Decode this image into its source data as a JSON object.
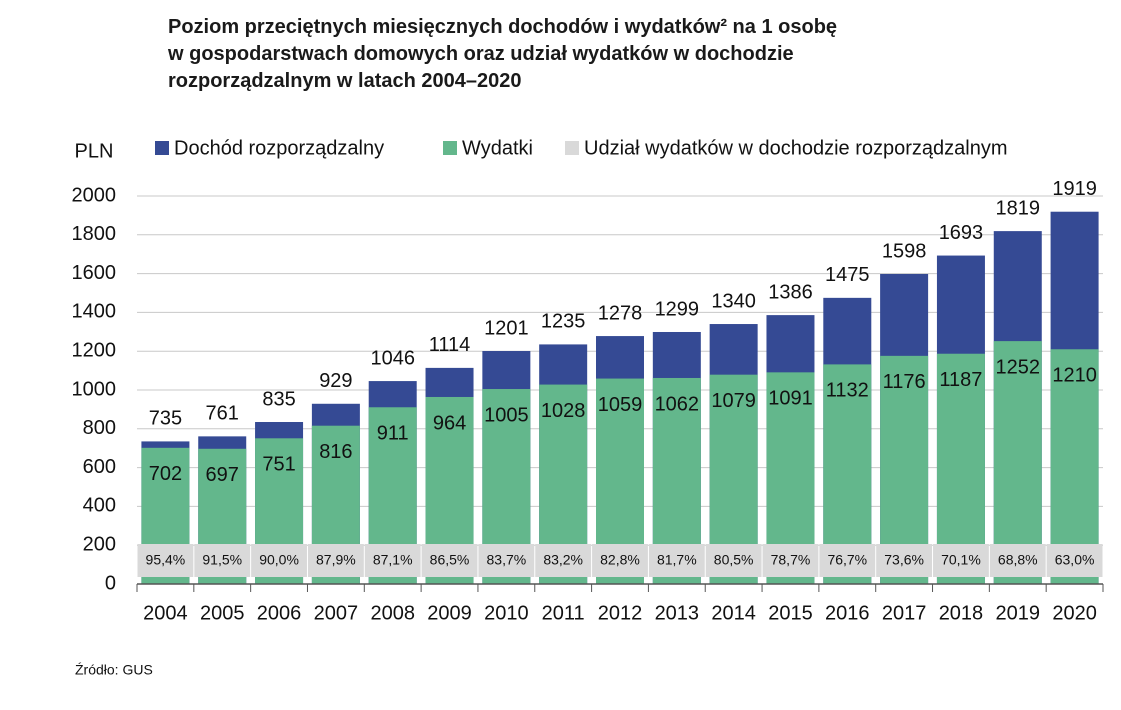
{
  "chart_data": {
    "type": "bar",
    "title": "Poziom przeciętnych miesięcznych dochodów i wydatków² na 1 osobę\nw gospodarstwach domowych oraz udział wydatków w dochodzie\nrozporządzalnym w latach 2004–2020",
    "y_label": "PLN",
    "source": "Źródło: GUS",
    "categories": [
      "2004",
      "2005",
      "2006",
      "2007",
      "2008",
      "2009",
      "2010",
      "2011",
      "2012",
      "2013",
      "2014",
      "2015",
      "2016",
      "2017",
      "2018",
      "2019",
      "2020"
    ],
    "series": [
      {
        "name": "Dochód rozporządzalny",
        "color": "#354a94",
        "values": [
          735,
          761,
          835,
          929,
          1046,
          1114,
          1201,
          1235,
          1278,
          1299,
          1340,
          1386,
          1475,
          1598,
          1693,
          1819,
          1919
        ]
      },
      {
        "name": "Wydatki",
        "color": "#63b78c",
        "values": [
          702,
          697,
          751,
          816,
          911,
          964,
          1005,
          1028,
          1059,
          1062,
          1079,
          1091,
          1132,
          1176,
          1187,
          1252,
          1210
        ]
      },
      {
        "name": "Udział wydatków w dochodzie rozporządzalnym",
        "color": "#d9d9d9",
        "values": [
          95.4,
          91.5,
          90.0,
          87.9,
          87.1,
          86.5,
          83.7,
          83.2,
          82.8,
          81.7,
          80.5,
          78.7,
          76.7,
          73.6,
          70.1,
          68.8,
          63.0
        ],
        "value_labels": [
          "95,4%",
          "91,5%",
          "90,0%",
          "87,9%",
          "87,1%",
          "86,5%",
          "83,7%",
          "83,2%",
          "82,8%",
          "81,7%",
          "80,5%",
          "78,7%",
          "76,7%",
          "73,6%",
          "70,1%",
          "68,8%",
          "63,0%"
        ]
      }
    ],
    "ylim": [
      0,
      2000
    ],
    "yticks": [
      0,
      200,
      400,
      600,
      800,
      1000,
      1200,
      1400,
      1600,
      1800,
      2000
    ],
    "grid": true
  }
}
